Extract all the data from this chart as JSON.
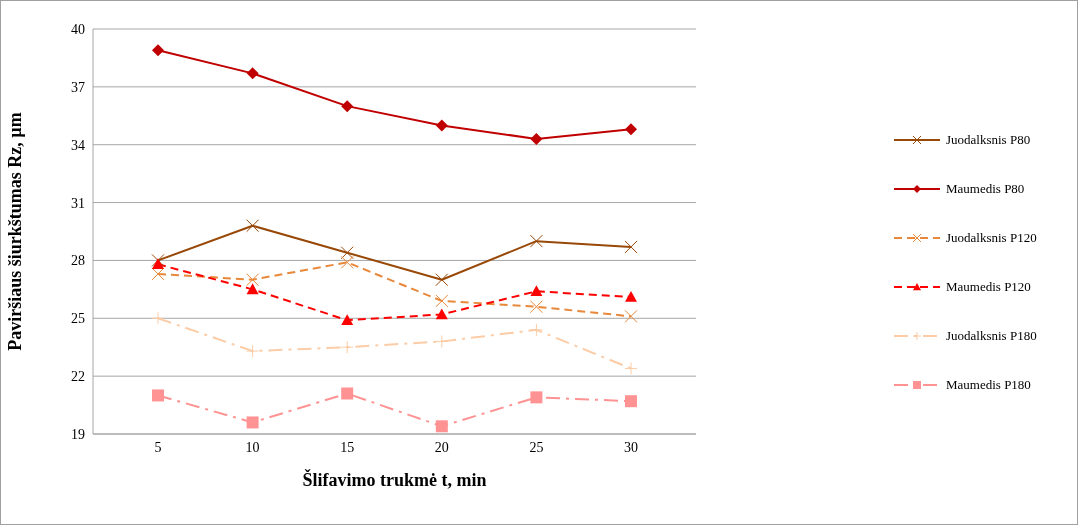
{
  "chart_data": {
    "type": "line",
    "xlabel": "Šlifavimo trukmė t, min",
    "ylabel": "Paviršiaus šiurkštumas Rz, µm",
    "categories": [
      "5",
      "10",
      "15",
      "20",
      "25",
      "30"
    ],
    "series": [
      {
        "name": "Juodalksnis P80",
        "color": "#984807",
        "marker": "cross",
        "line_style": "solid",
        "values": [
          28.0,
          29.8,
          28.4,
          27.0,
          29.0,
          28.7
        ]
      },
      {
        "name": "Maumedis P80",
        "color": "#c00000",
        "marker": "diamond",
        "line_style": "solid",
        "values": [
          38.9,
          37.7,
          36.0,
          35.0,
          34.3,
          34.8
        ]
      },
      {
        "name": "Juodalksnis P120",
        "color": "#e8883a",
        "marker": "cross",
        "line_style": "dashed",
        "values": [
          27.3,
          27.0,
          27.9,
          25.9,
          25.6,
          25.1
        ]
      },
      {
        "name": "Maumedis P120",
        "color": "#ff0000",
        "marker": "triangle",
        "line_style": "dashed",
        "values": [
          27.8,
          26.5,
          24.9,
          25.2,
          26.4,
          26.1
        ]
      },
      {
        "name": "Juodalksnis P180",
        "color": "#fbcca6",
        "marker": "plus",
        "line_style": "dashdot",
        "values": [
          25.0,
          23.3,
          23.5,
          23.8,
          24.4,
          22.4
        ]
      },
      {
        "name": "Maumedis P180",
        "color": "#ff9393",
        "marker": "square",
        "line_style": "dashdot",
        "values": [
          21.0,
          19.6,
          21.1,
          19.4,
          20.9,
          20.7
        ]
      }
    ],
    "ylim": [
      19,
      40
    ],
    "yticks": [
      19,
      22,
      25,
      28,
      31,
      34,
      37,
      40
    ],
    "grid": "y",
    "legend": "right"
  }
}
